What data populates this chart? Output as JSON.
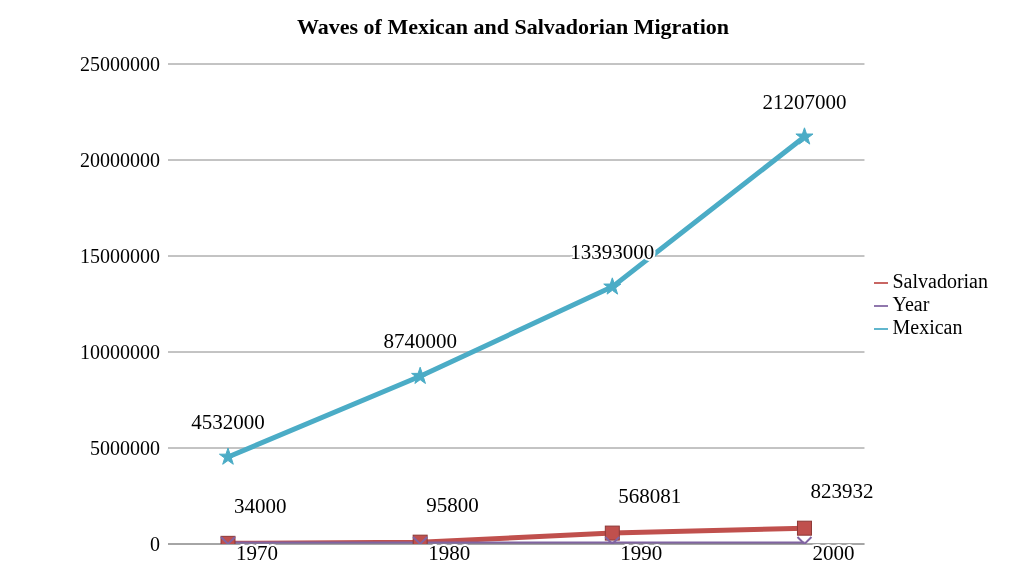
{
  "chart_data": {
    "type": "line",
    "title": "Waves of Mexican and Salvadorian Migration",
    "categories": [
      null,
      null,
      null,
      null
    ],
    "series": [
      {
        "name": "Salvadorian",
        "color": "#c0504d",
        "marker": "square",
        "values": [
          34000,
          95800,
          568081,
          823932
        ]
      },
      {
        "name": "Year",
        "color": "#8064a2",
        "marker": "cross",
        "values": [
          1970,
          1980,
          1990,
          2000
        ]
      },
      {
        "name": "Mexican",
        "color": "#4bacc6",
        "marker": "star",
        "values": [
          4532000,
          8740000,
          13393000,
          21207000
        ]
      }
    ],
    "ylim": [
      0,
      25000000
    ],
    "yticks": [
      0,
      5000000,
      10000000,
      15000000,
      20000000,
      25000000
    ],
    "grid": "y",
    "legend": "right",
    "data_labels": true,
    "line_style": "solid"
  }
}
